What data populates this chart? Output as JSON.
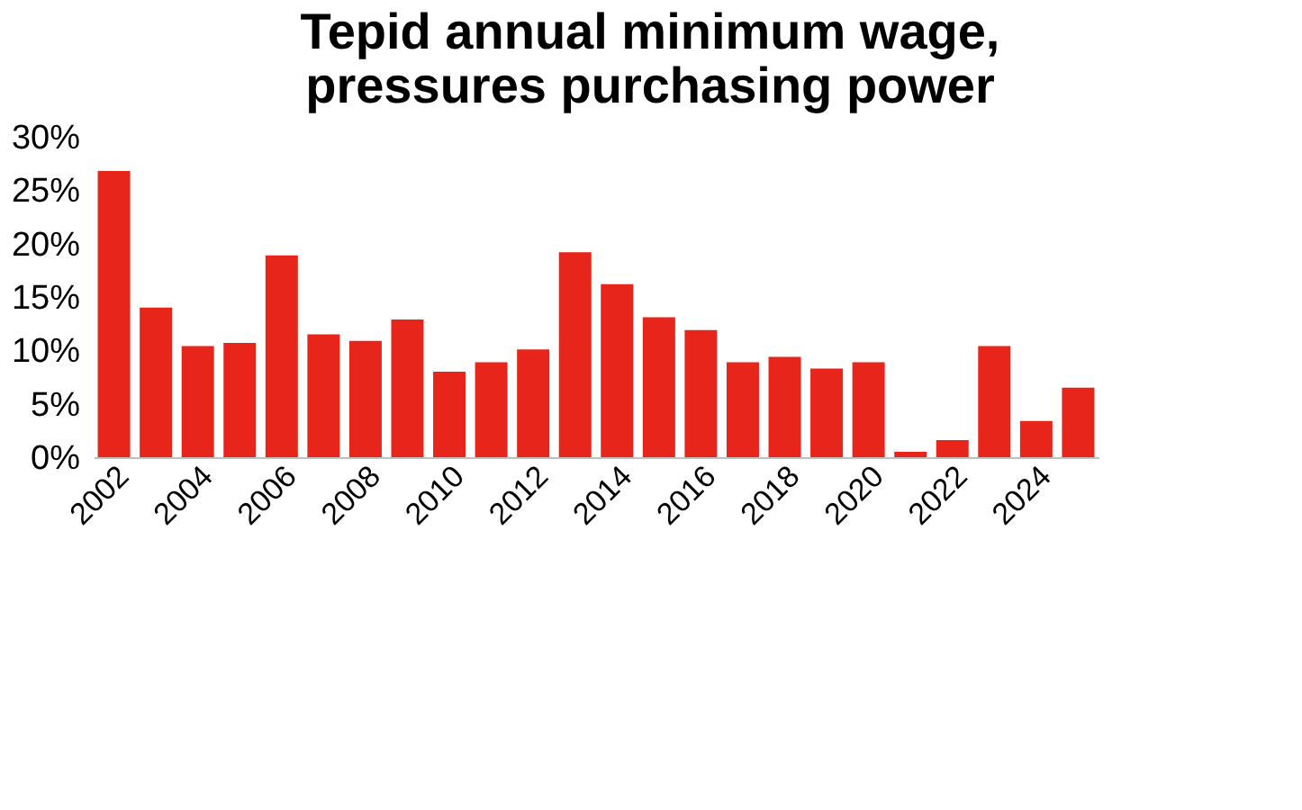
{
  "chart_data": {
    "type": "bar",
    "title": "Tepid annual minimum wage, pressures purchasing power",
    "categories": [
      "2002",
      null,
      "2004",
      null,
      "2006",
      null,
      "2008",
      null,
      "2010",
      null,
      "2012",
      null,
      "2014",
      null,
      "2016",
      null,
      "2018",
      null,
      "2020",
      null,
      "2022",
      null,
      "2024",
      null
    ],
    "values": [
      26.8,
      14.0,
      10.4,
      10.7,
      18.9,
      11.5,
      10.9,
      12.9,
      8.0,
      8.9,
      10.1,
      19.2,
      16.2,
      13.1,
      11.9,
      8.9,
      9.4,
      8.3,
      8.9,
      0.5,
      1.6,
      10.4,
      3.4,
      6.5
    ],
    "color": "#e8251a",
    "ylim": [
      0,
      30
    ],
    "yticks": [
      {
        "value": 0,
        "label": "0%"
      },
      {
        "value": 5,
        "label": "5%"
      },
      {
        "value": 10,
        "label": "10%"
      },
      {
        "value": 15,
        "label": "15%"
      },
      {
        "value": 20,
        "label": "20%"
      },
      {
        "value": 25,
        "label": "25%"
      },
      {
        "value": 30,
        "label": "30%"
      }
    ],
    "grid": false
  }
}
